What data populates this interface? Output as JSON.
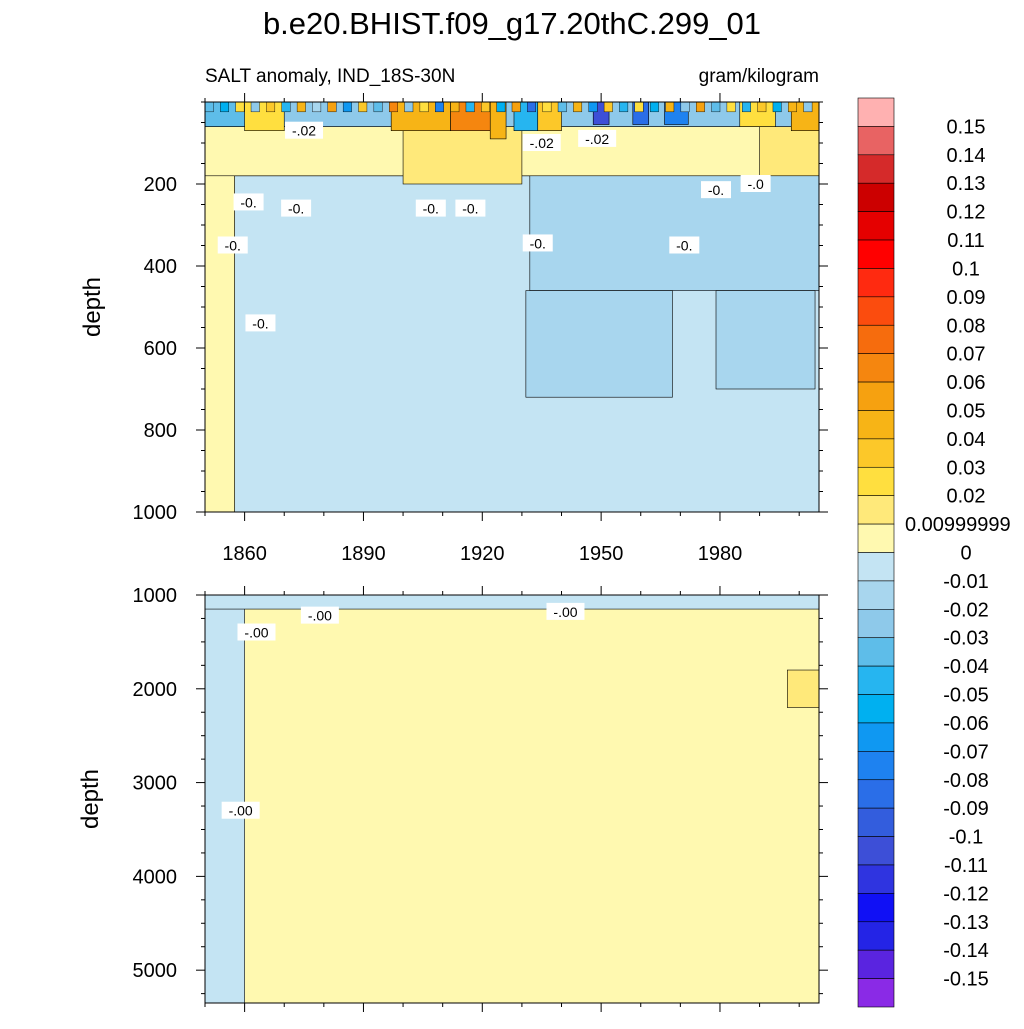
{
  "title": "b.e20.BHIST.f09_g17.20thC.299_01",
  "panel_label_left": "SALT anomaly, IND_18S-30N",
  "panel_label_right": "gram/kilogram",
  "colors": {
    "neg_001": "#c4e4f3",
    "neg_002": "#a8d6ee",
    "neg_003": "#8ec9ea",
    "neg_004": "#5ebde9",
    "pos_001": "#fff9b0",
    "pos_002": "#ffe760",
    "pos_003": "#fcd03b",
    "pos_004": "#f7b416",
    "pos_005": "#f6a110",
    "pos_006": "#f47d0e",
    "pos_007": "#c84b0b",
    "line": "#000000"
  },
  "chart_data": [
    {
      "type": "heatmap",
      "panel": "upper",
      "title": "b.e20.BHIST.f09_g17.20thC.299_01",
      "subtitle_left": "SALT anomaly, IND_18S-30N",
      "subtitle_right": "gram/kilogram",
      "xlabel": "",
      "ylabel": "depth",
      "xlim": [
        1850,
        2005
      ],
      "ylim": [
        1000,
        0
      ],
      "x_ticks": [
        1860,
        1890,
        1920,
        1950,
        1980
      ],
      "x_tick_labels": [
        "1860",
        "1890",
        "1920",
        "1950",
        "1980"
      ],
      "y_ticks": [
        200,
        400,
        600,
        800,
        1000
      ],
      "y_tick_labels": [
        "200",
        "400",
        "600",
        "800",
        "1000"
      ],
      "background_value": -0.005,
      "regions": [
        {
          "x0": 1850,
          "x1": 1857.5,
          "y0": 0,
          "y1": 1000,
          "value": 0.005
        },
        {
          "x0": 1857.5,
          "x1": 2005,
          "y0": 180,
          "y1": 1000,
          "value": -0.005
        },
        {
          "x0": 1850,
          "x1": 2005,
          "y0": 60,
          "y1": 180,
          "value": 0.005
        },
        {
          "x0": 1900,
          "x1": 1930,
          "y0": 60,
          "y1": 200,
          "value": 0.015
        },
        {
          "x0": 1990,
          "x1": 2005,
          "y0": 60,
          "y1": 250,
          "value": 0.015
        },
        {
          "x0": 1932,
          "x1": 2005,
          "y0": 180,
          "y1": 460,
          "value": -0.015
        },
        {
          "x0": 1931,
          "x1": 1968,
          "y0": 460,
          "y1": 720,
          "value": -0.015
        },
        {
          "x0": 1979,
          "x1": 2004,
          "y0": 460,
          "y1": 700,
          "value": -0.015
        },
        {
          "x0": 1850,
          "x1": 2005,
          "y0": 0,
          "y1": 60,
          "value": -0.03
        },
        {
          "x0": 1850,
          "x1": 1862,
          "y0": 0,
          "y1": 60,
          "value": -0.04
        },
        {
          "x0": 1860,
          "x1": 1870,
          "y0": 0,
          "y1": 70,
          "value": 0.025
        },
        {
          "x0": 1897,
          "x1": 1912,
          "y0": 0,
          "y1": 70,
          "value": 0.04
        },
        {
          "x0": 1912,
          "x1": 1923,
          "y0": 0,
          "y1": 70,
          "value": 0.065
        },
        {
          "x0": 1922,
          "x1": 1926,
          "y0": 0,
          "y1": 90,
          "value": 0.045
        },
        {
          "x0": 1928,
          "x1": 1934,
          "y0": 0,
          "y1": 70,
          "value": -0.05
        },
        {
          "x0": 1934,
          "x1": 1940,
          "y0": 0,
          "y1": 70,
          "value": 0.03
        },
        {
          "x0": 1948,
          "x1": 1952,
          "y0": 0,
          "y1": 55,
          "value": -0.11
        },
        {
          "x0": 1958,
          "x1": 1962,
          "y0": 0,
          "y1": 55,
          "value": -0.09
        },
        {
          "x0": 1966,
          "x1": 1972,
          "y0": 0,
          "y1": 55,
          "value": -0.08
        },
        {
          "x0": 1985,
          "x1": 1994,
          "y0": 0,
          "y1": 60,
          "value": 0.025
        },
        {
          "x0": 1998,
          "x1": 2005,
          "y0": 0,
          "y1": 70,
          "value": 0.045
        }
      ],
      "contour_labels": [
        {
          "text": "-.02",
          "x": 1875,
          "y": 70
        },
        {
          "text": "-.02",
          "x": 1935,
          "y": 100
        },
        {
          "text": "-.02",
          "x": 1949,
          "y": 90
        },
        {
          "text": "-0.",
          "x": 1861,
          "y": 245
        },
        {
          "text": "-0.",
          "x": 1873,
          "y": 260
        },
        {
          "text": "-0.",
          "x": 1907,
          "y": 260
        },
        {
          "text": "-0.",
          "x": 1917,
          "y": 260
        },
        {
          "text": "-0.",
          "x": 1857,
          "y": 350
        },
        {
          "text": "-0.",
          "x": 1864,
          "y": 540
        },
        {
          "text": "-0.",
          "x": 1934,
          "y": 345
        },
        {
          "text": "-0.",
          "x": 1971,
          "y": 350
        },
        {
          "text": "-0.",
          "x": 1979,
          "y": 215
        },
        {
          "text": "-.0",
          "x": 1989,
          "y": 200
        }
      ]
    },
    {
      "type": "heatmap",
      "panel": "lower",
      "xlabel": "",
      "ylabel": "depth",
      "xlim": [
        1850,
        2005
      ],
      "ylim": [
        5350,
        1000
      ],
      "x_ticks": [
        1860,
        1890,
        1920,
        1950,
        1980
      ],
      "x_tick_labels": [],
      "y_ticks": [
        1000,
        2000,
        3000,
        4000,
        5000
      ],
      "y_tick_labels": [
        "1000",
        "2000",
        "3000",
        "4000",
        "5000"
      ],
      "background_value": 0.005,
      "regions": [
        {
          "x0": 1850,
          "x1": 1860,
          "y0": 1000,
          "y1": 5350,
          "value": -0.005
        },
        {
          "x0": 1850,
          "x1": 2005,
          "y0": 1000,
          "y1": 1150,
          "value": -0.005
        },
        {
          "x0": 1997,
          "x1": 2005,
          "y0": 1800,
          "y1": 2200,
          "value": 0.015
        }
      ],
      "contour_labels": [
        {
          "text": "-.00",
          "x": 1863,
          "y": 1400
        },
        {
          "text": "-.00",
          "x": 1879,
          "y": 1220
        },
        {
          "text": "-.00",
          "x": 1941,
          "y": 1180
        },
        {
          "text": "-.00",
          "x": 1859,
          "y": 3300
        }
      ]
    },
    {
      "type": "colorbar",
      "labels": [
        "0.15",
        "0.14",
        "0.13",
        "0.12",
        "0.11",
        "0.1",
        "0.09",
        "0.08",
        "0.07",
        "0.06",
        "0.05",
        "0.04",
        "0.03",
        "0.02",
        "0.00999999",
        "0",
        "-0.01",
        "-0.02",
        "-0.03",
        "-0.04",
        "-0.05",
        "-0.06",
        "-0.07",
        "-0.08",
        "-0.09",
        "-0.1",
        "-0.11",
        "-0.12",
        "-0.13",
        "-0.14",
        "-0.15"
      ],
      "colors": [
        "#ffb1b1",
        "#e86363",
        "#d52a2a",
        "#cc0000",
        "#e50000",
        "#ff0000",
        "#ff2a10",
        "#fb4c0e",
        "#f66c0d",
        "#f5860f",
        "#f6a110",
        "#f7b416",
        "#fcc829",
        "#ffdf3f",
        "#ffe97a",
        "#fff9b0",
        "#c4e4f3",
        "#a8d6ee",
        "#8ec9ea",
        "#5ebde9",
        "#26b5f0",
        "#00b0f0",
        "#0f98f2",
        "#1e82f0",
        "#2a6ee8",
        "#335ddd",
        "#3d4fd7",
        "#2f34e0",
        "#1010f5",
        "#2424e6",
        "#5a24e0",
        "#8a2ae6"
      ]
    }
  ]
}
